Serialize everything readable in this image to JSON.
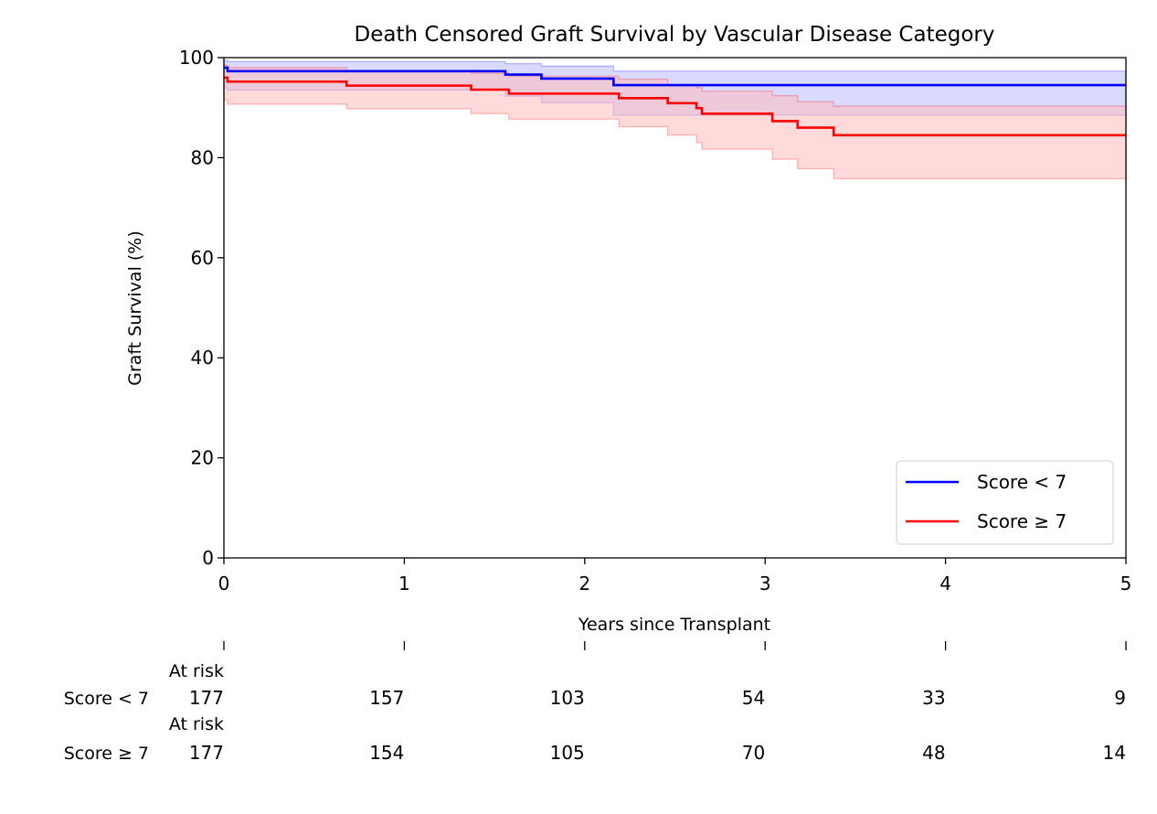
{
  "chart_data": {
    "type": "line",
    "title": "Death Censored Graft Survival by Vascular Disease Category",
    "xlabel": "Years since Transplant",
    "ylabel": "Graft Survival (%)",
    "xlim": [
      0,
      5
    ],
    "ylim": [
      0,
      100
    ],
    "xticks": [
      0,
      1,
      2,
      3,
      4,
      5
    ],
    "yticks": [
      0,
      20,
      40,
      60,
      80,
      100
    ],
    "grid": false,
    "legend_position": "lower-right",
    "series": [
      {
        "name": "Score < 7",
        "color": "#0000ff",
        "band_color": "#bbbbff",
        "steps": [
          [
            0,
            98.0
          ],
          [
            0.02,
            97.3
          ],
          [
            1.56,
            96.6
          ],
          [
            1.76,
            95.8
          ],
          [
            2.16,
            94.5
          ],
          [
            5,
            94.5
          ]
        ],
        "ci_upper": [
          [
            0,
            99.5
          ],
          [
            0.02,
            99.2
          ],
          [
            1.56,
            98.8
          ],
          [
            1.76,
            98.3
          ],
          [
            2.16,
            97.3
          ],
          [
            5,
            97.3
          ]
        ],
        "ci_lower": [
          [
            0,
            94.0
          ],
          [
            0.02,
            93.5
          ],
          [
            1.56,
            92.3
          ],
          [
            1.76,
            91.0
          ],
          [
            2.16,
            88.5
          ],
          [
            5,
            88.5
          ]
        ]
      },
      {
        "name": "Score ≥ 7",
        "color": "#ff0000",
        "band_color": "#ffbbbb",
        "steps": [
          [
            0,
            96.0
          ],
          [
            0.02,
            95.2
          ],
          [
            0.68,
            94.4
          ],
          [
            1.37,
            93.6
          ],
          [
            1.58,
            92.8
          ],
          [
            2.19,
            91.9
          ],
          [
            2.46,
            90.9
          ],
          [
            2.62,
            89.9
          ],
          [
            2.65,
            88.8
          ],
          [
            3.04,
            87.3
          ],
          [
            3.18,
            86.0
          ],
          [
            3.38,
            84.5
          ],
          [
            5,
            84.5
          ]
        ],
        "ci_upper": [
          [
            0,
            98.5
          ],
          [
            0.02,
            98.0
          ],
          [
            0.68,
            97.4
          ],
          [
            1.37,
            96.9
          ],
          [
            1.58,
            96.3
          ],
          [
            2.19,
            95.7
          ],
          [
            2.46,
            94.6
          ],
          [
            2.62,
            94.0
          ],
          [
            2.65,
            93.3
          ],
          [
            3.04,
            92.4
          ],
          [
            3.18,
            91.2
          ],
          [
            3.38,
            90.3
          ],
          [
            5,
            90.3
          ]
        ],
        "ci_lower": [
          [
            0,
            91.5
          ],
          [
            0.02,
            90.7
          ],
          [
            0.68,
            89.8
          ],
          [
            1.37,
            88.8
          ],
          [
            1.58,
            87.7
          ],
          [
            2.19,
            86.2
          ],
          [
            2.46,
            84.5
          ],
          [
            2.62,
            83.0
          ],
          [
            2.65,
            81.7
          ],
          [
            3.04,
            79.7
          ],
          [
            3.18,
            77.8
          ],
          [
            3.38,
            75.8
          ],
          [
            5,
            75.8
          ]
        ]
      }
    ],
    "at_risk": {
      "label": "At risk",
      "times": [
        0,
        1,
        2,
        3,
        4,
        5
      ],
      "rows": [
        {
          "group": "Score < 7",
          "counts": [
            177,
            157,
            103,
            54,
            33,
            9
          ]
        },
        {
          "group": "Score ≥ 7",
          "counts": [
            177,
            154,
            105,
            70,
            48,
            14
          ]
        }
      ]
    }
  }
}
